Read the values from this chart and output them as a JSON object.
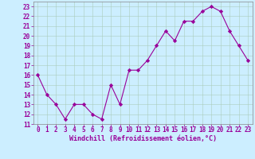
{
  "x": [
    0,
    1,
    2,
    3,
    4,
    5,
    6,
    7,
    8,
    9,
    10,
    11,
    12,
    13,
    14,
    15,
    16,
    17,
    18,
    19,
    20,
    21,
    22,
    23
  ],
  "y": [
    16,
    14,
    13,
    11.5,
    13,
    13,
    12,
    11.5,
    15,
    13,
    16.5,
    16.5,
    17.5,
    19,
    20.5,
    19.5,
    21.5,
    21.5,
    22.5,
    23,
    22.5,
    20.5,
    19,
    17.5
  ],
  "line_color": "#990099",
  "marker": "D",
  "marker_size": 2.2,
  "line_width": 0.8,
  "bg_color": "#CCEEFF",
  "grid_color": "#AACCBB",
  "xlabel": "Windchill (Refroidissement éolien,°C)",
  "xlabel_color": "#990099",
  "tick_color": "#990099",
  "spine_color": "#888888",
  "ylim": [
    11,
    23.5
  ],
  "xlim": [
    -0.5,
    23.5
  ],
  "yticks": [
    11,
    12,
    13,
    14,
    15,
    16,
    17,
    18,
    19,
    20,
    21,
    22,
    23
  ],
  "xticks": [
    0,
    1,
    2,
    3,
    4,
    5,
    6,
    7,
    8,
    9,
    10,
    11,
    12,
    13,
    14,
    15,
    16,
    17,
    18,
    19,
    20,
    21,
    22,
    23
  ],
  "tick_fontsize": 5.5,
  "xlabel_fontsize": 6.0
}
